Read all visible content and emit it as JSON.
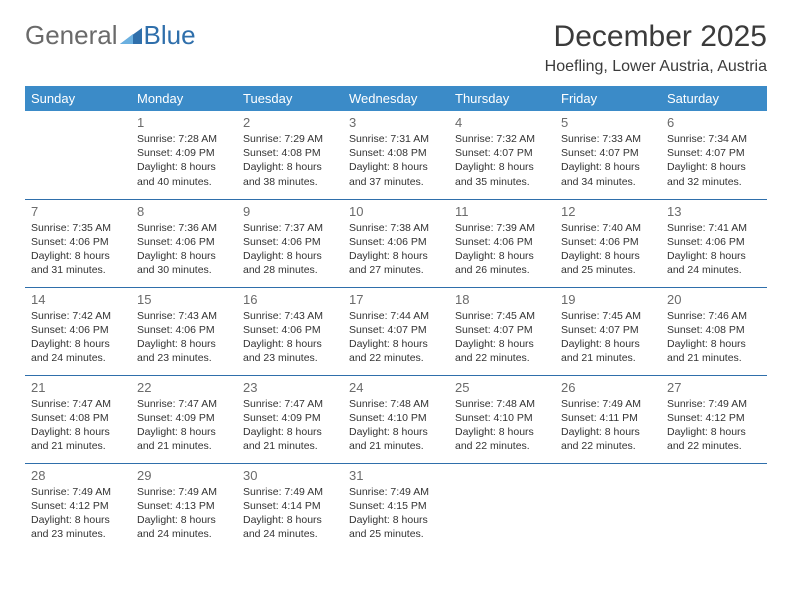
{
  "logo": {
    "text1": "General",
    "text2": "Blue"
  },
  "title": "December 2025",
  "location": "Hoefling, Lower Austria, Austria",
  "colors": {
    "header_bg": "#3b8bc8",
    "header_fg": "#ffffff",
    "rule": "#2f6fab",
    "daynum": "#6b6b6b",
    "text": "#333333",
    "logo_gray": "#6a6a6a",
    "logo_blue": "#2f6fab",
    "page_bg": "#ffffff"
  },
  "typography": {
    "title_fontsize": 30,
    "location_fontsize": 16,
    "dayheader_fontsize": 13,
    "daynum_fontsize": 13,
    "info_fontsize": 10.5
  },
  "dayHeaders": [
    "Sunday",
    "Monday",
    "Tuesday",
    "Wednesday",
    "Thursday",
    "Friday",
    "Saturday"
  ],
  "weeks": [
    [
      null,
      {
        "n": "1",
        "sr": "7:28 AM",
        "ss": "4:09 PM",
        "dl": "8 hours and 40 minutes."
      },
      {
        "n": "2",
        "sr": "7:29 AM",
        "ss": "4:08 PM",
        "dl": "8 hours and 38 minutes."
      },
      {
        "n": "3",
        "sr": "7:31 AM",
        "ss": "4:08 PM",
        "dl": "8 hours and 37 minutes."
      },
      {
        "n": "4",
        "sr": "7:32 AM",
        "ss": "4:07 PM",
        "dl": "8 hours and 35 minutes."
      },
      {
        "n": "5",
        "sr": "7:33 AM",
        "ss": "4:07 PM",
        "dl": "8 hours and 34 minutes."
      },
      {
        "n": "6",
        "sr": "7:34 AM",
        "ss": "4:07 PM",
        "dl": "8 hours and 32 minutes."
      }
    ],
    [
      {
        "n": "7",
        "sr": "7:35 AM",
        "ss": "4:06 PM",
        "dl": "8 hours and 31 minutes."
      },
      {
        "n": "8",
        "sr": "7:36 AM",
        "ss": "4:06 PM",
        "dl": "8 hours and 30 minutes."
      },
      {
        "n": "9",
        "sr": "7:37 AM",
        "ss": "4:06 PM",
        "dl": "8 hours and 28 minutes."
      },
      {
        "n": "10",
        "sr": "7:38 AM",
        "ss": "4:06 PM",
        "dl": "8 hours and 27 minutes."
      },
      {
        "n": "11",
        "sr": "7:39 AM",
        "ss": "4:06 PM",
        "dl": "8 hours and 26 minutes."
      },
      {
        "n": "12",
        "sr": "7:40 AM",
        "ss": "4:06 PM",
        "dl": "8 hours and 25 minutes."
      },
      {
        "n": "13",
        "sr": "7:41 AM",
        "ss": "4:06 PM",
        "dl": "8 hours and 24 minutes."
      }
    ],
    [
      {
        "n": "14",
        "sr": "7:42 AM",
        "ss": "4:06 PM",
        "dl": "8 hours and 24 minutes."
      },
      {
        "n": "15",
        "sr": "7:43 AM",
        "ss": "4:06 PM",
        "dl": "8 hours and 23 minutes."
      },
      {
        "n": "16",
        "sr": "7:43 AM",
        "ss": "4:06 PM",
        "dl": "8 hours and 23 minutes."
      },
      {
        "n": "17",
        "sr": "7:44 AM",
        "ss": "4:07 PM",
        "dl": "8 hours and 22 minutes."
      },
      {
        "n": "18",
        "sr": "7:45 AM",
        "ss": "4:07 PM",
        "dl": "8 hours and 22 minutes."
      },
      {
        "n": "19",
        "sr": "7:45 AM",
        "ss": "4:07 PM",
        "dl": "8 hours and 21 minutes."
      },
      {
        "n": "20",
        "sr": "7:46 AM",
        "ss": "4:08 PM",
        "dl": "8 hours and 21 minutes."
      }
    ],
    [
      {
        "n": "21",
        "sr": "7:47 AM",
        "ss": "4:08 PM",
        "dl": "8 hours and 21 minutes."
      },
      {
        "n": "22",
        "sr": "7:47 AM",
        "ss": "4:09 PM",
        "dl": "8 hours and 21 minutes."
      },
      {
        "n": "23",
        "sr": "7:47 AM",
        "ss": "4:09 PM",
        "dl": "8 hours and 21 minutes."
      },
      {
        "n": "24",
        "sr": "7:48 AM",
        "ss": "4:10 PM",
        "dl": "8 hours and 21 minutes."
      },
      {
        "n": "25",
        "sr": "7:48 AM",
        "ss": "4:10 PM",
        "dl": "8 hours and 22 minutes."
      },
      {
        "n": "26",
        "sr": "7:49 AM",
        "ss": "4:11 PM",
        "dl": "8 hours and 22 minutes."
      },
      {
        "n": "27",
        "sr": "7:49 AM",
        "ss": "4:12 PM",
        "dl": "8 hours and 22 minutes."
      }
    ],
    [
      {
        "n": "28",
        "sr": "7:49 AM",
        "ss": "4:12 PM",
        "dl": "8 hours and 23 minutes."
      },
      {
        "n": "29",
        "sr": "7:49 AM",
        "ss": "4:13 PM",
        "dl": "8 hours and 24 minutes."
      },
      {
        "n": "30",
        "sr": "7:49 AM",
        "ss": "4:14 PM",
        "dl": "8 hours and 24 minutes."
      },
      {
        "n": "31",
        "sr": "7:49 AM",
        "ss": "4:15 PM",
        "dl": "8 hours and 25 minutes."
      },
      null,
      null,
      null
    ]
  ],
  "labels": {
    "sunrise": "Sunrise:",
    "sunset": "Sunset:",
    "daylight": "Daylight:"
  }
}
